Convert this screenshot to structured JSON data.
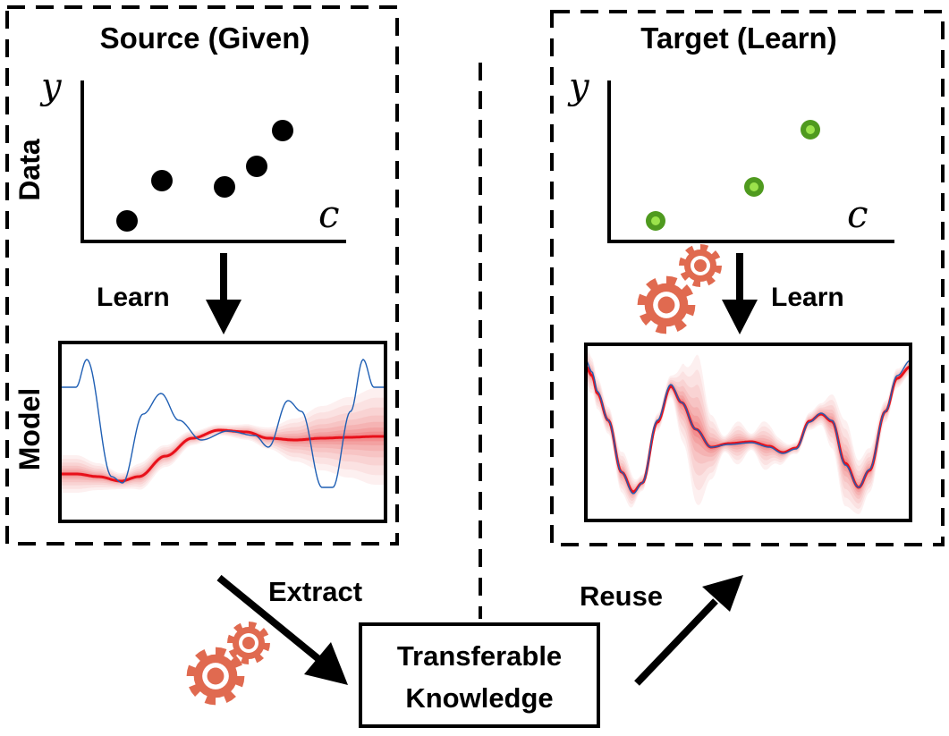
{
  "source": {
    "title": "Source (Given)",
    "data_label": "Data",
    "model_label": "Model",
    "learn_label": "Learn",
    "y_axis_symbol": "y",
    "x_axis_symbol": "c",
    "point_color": "#000000"
  },
  "target": {
    "title": "Target (Learn)",
    "learn_label": "Learn",
    "y_axis_symbol": "y",
    "x_axis_symbol": "c",
    "point_color": "#4f9a1f",
    "point_inner_color": "#9be34c"
  },
  "center": {
    "knowledge_label_line1": "Transferable",
    "knowledge_label_line2": "Knowledge",
    "extract_label": "Extract",
    "reuse_label": "Reuse"
  },
  "colors": {
    "gear": "#e06a50",
    "uncertainty_band": "#f0686a",
    "mean_curve": "#e8101a",
    "true_function": "#1f5fb4"
  }
}
